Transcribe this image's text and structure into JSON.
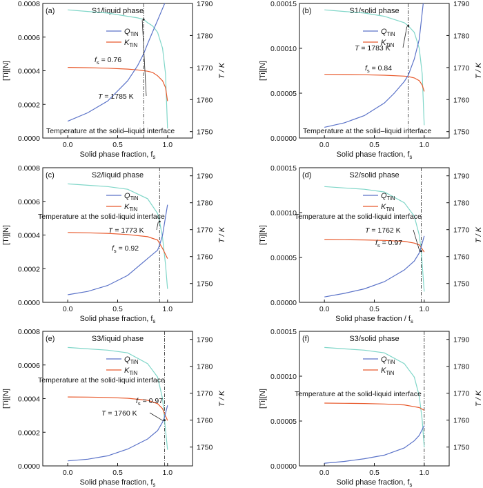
{
  "figure_colors": {
    "Q": "#5a72c8",
    "K": "#e8582a",
    "T": "#7fd6c8",
    "axis": "#111111",
    "marker": "#222222"
  },
  "chart_data": [
    {
      "type": "line",
      "panel_label": "(a)",
      "title": "S1/liquid phase",
      "xlabel": "Solid phase fraction, f",
      "xlabel_sub": "s",
      "ylabel": "[Ti][N]",
      "y2label": "T / K",
      "xlim": [
        -0.25,
        1.25
      ],
      "xticks": [
        0.0,
        0.5,
        1.0
      ],
      "xtick_labels": [
        "0.0",
        "0.5",
        "1.0"
      ],
      "ylim": [
        0,
        0.0008
      ],
      "yticks": [
        0,
        0.0002,
        0.0004,
        0.0006,
        0.0008
      ],
      "ytick_labels": [
        "0.0000",
        "0.0002",
        "0.0004",
        "0.0006",
        "0.0008"
      ],
      "y2lim": [
        1748,
        1790
      ],
      "y2ticks": [
        1750,
        1760,
        1770,
        1780,
        1790
      ],
      "y2tick_labels": [
        "1750",
        "1760",
        "1770",
        "1780",
        "1790"
      ],
      "legend": [
        {
          "main": "Q",
          "sub": "TiN"
        },
        {
          "main": "K",
          "sub": "TiN"
        }
      ],
      "annotations": [
        {
          "main": "T",
          "rest": " = 1785 K"
        },
        {
          "main": "f",
          "sub": "s",
          "rest": " = 0.76"
        },
        {
          "text": "Temperature at the solid–liquid interface"
        }
      ],
      "vline_x": 0.76,
      "series": [
        {
          "name": "Q",
          "axis": "left",
          "x": [
            0,
            0.2,
            0.4,
            0.6,
            0.7,
            0.76,
            0.8,
            0.85,
            0.9,
            0.95,
            1.0
          ],
          "y": [
            0.0001,
            0.00015,
            0.00022,
            0.00034,
            0.00043,
            0.0005,
            0.00056,
            0.00063,
            0.0007,
            0.00077,
            0.00084
          ]
        },
        {
          "name": "K",
          "axis": "left",
          "x": [
            0,
            0.2,
            0.4,
            0.6,
            0.7,
            0.8,
            0.85,
            0.9,
            0.95,
            0.98,
            1.0
          ],
          "y": [
            0.00042,
            0.000418,
            0.000415,
            0.00041,
            0.000405,
            0.000397,
            0.00039,
            0.00037,
            0.00034,
            0.0003,
            0.00022
          ]
        },
        {
          "name": "T",
          "axis": "right",
          "x": [
            0,
            0.2,
            0.4,
            0.6,
            0.7,
            0.76,
            0.8,
            0.85,
            0.9,
            0.95,
            0.98,
            1.0
          ],
          "y": [
            1788,
            1787.5,
            1787,
            1786,
            1785.5,
            1785,
            1784,
            1783,
            1781,
            1776,
            1768,
            1751
          ]
        }
      ]
    },
    {
      "type": "line",
      "panel_label": "(b)",
      "title": "S1/solid phase",
      "xlabel": "Solid phase fraction, f",
      "xlabel_sub": "s",
      "ylabel": "[Ti][N]",
      "y2label": "T / K",
      "xlim": [
        -0.25,
        1.25
      ],
      "xticks": [
        0.0,
        0.5,
        1.0
      ],
      "xtick_labels": [
        "0.0",
        "0.5",
        "1.0"
      ],
      "ylim": [
        0,
        0.00015
      ],
      "yticks": [
        0,
        5e-05,
        0.0001,
        0.00015
      ],
      "ytick_labels": [
        "0.00000",
        "0.00005",
        "0.00010",
        "0.00015"
      ],
      "y2lim": [
        1748,
        1790
      ],
      "y2ticks": [
        1750,
        1760,
        1770,
        1780,
        1790
      ],
      "y2tick_labels": [
        "1750",
        "1760",
        "1770",
        "1780",
        "1790"
      ],
      "legend": [
        {
          "main": "Q",
          "sub": "TiN"
        },
        {
          "main": "K",
          "sub": "TiN"
        }
      ],
      "annotations": [
        {
          "main": "T",
          "rest": " = 1783 K"
        },
        {
          "main": "f",
          "sub": "s",
          "rest": " = 0.84"
        },
        {
          "text": "Temperature at the solid–liquid interface"
        }
      ],
      "vline_x": 0.84,
      "series": [
        {
          "name": "Q",
          "axis": "left",
          "x": [
            0,
            0.2,
            0.4,
            0.6,
            0.7,
            0.8,
            0.84,
            0.9,
            0.95,
            1.0
          ],
          "y": [
            1.2e-05,
            1.7e-05,
            2.5e-05,
            3.9e-05,
            5e-05,
            6.3e-05,
            7e-05,
            8.8e-05,
            0.00011,
            0.00016
          ]
        },
        {
          "name": "K",
          "axis": "left",
          "x": [
            0,
            0.2,
            0.4,
            0.6,
            0.8,
            0.84,
            0.9,
            0.95,
            0.98,
            1.0
          ],
          "y": [
            7.1e-05,
            7.08e-05,
            7.05e-05,
            7e-05,
            6.9e-05,
            6.85e-05,
            6.7e-05,
            6.4e-05,
            5.9e-05,
            5.2e-05
          ]
        },
        {
          "name": "T",
          "axis": "right",
          "x": [
            0,
            0.2,
            0.4,
            0.6,
            0.8,
            0.84,
            0.9,
            0.95,
            0.98,
            1.0
          ],
          "y": [
            1788,
            1787.5,
            1787,
            1786,
            1784,
            1783,
            1781,
            1776,
            1768,
            1752
          ]
        }
      ]
    },
    {
      "type": "line",
      "panel_label": "(c)",
      "title": "S2/liquid phase",
      "xlabel": "Solid phase fraction, f",
      "xlabel_sub": "s",
      "ylabel": "[Ti][N]",
      "y2label": "T / K",
      "xlim": [
        -0.25,
        1.25
      ],
      "xticks": [
        0.0,
        0.5,
        1.0
      ],
      "xtick_labels": [
        "0.0",
        "0.5",
        "1.0"
      ],
      "ylim": [
        0,
        0.0008
      ],
      "yticks": [
        0,
        0.0002,
        0.0004,
        0.0006,
        0.0008
      ],
      "ytick_labels": [
        "0.0000",
        "0.0002",
        "0.0004",
        "0.0006",
        "0.0008"
      ],
      "y2lim": [
        1743,
        1793
      ],
      "y2ticks": [
        1750,
        1760,
        1770,
        1780,
        1790
      ],
      "y2tick_labels": [
        "1750",
        "1760",
        "1770",
        "1780",
        "1790"
      ],
      "legend": [
        {
          "main": "Q",
          "sub": "TiN"
        },
        {
          "main": "K",
          "sub": "TiN"
        }
      ],
      "annotations": [
        {
          "text": "Temperature at the solid-liquid interface"
        },
        {
          "main": "T",
          "rest": " = 1773 K"
        },
        {
          "main": "f",
          "sub": "s",
          "rest": " = 0.92"
        }
      ],
      "vline_x": 0.92,
      "series": [
        {
          "name": "Q",
          "axis": "left",
          "x": [
            0,
            0.2,
            0.4,
            0.6,
            0.8,
            0.9,
            0.92,
            0.95,
            1.0
          ],
          "y": [
            4.5e-05,
            6.5e-05,
            0.0001,
            0.00016,
            0.00026,
            0.00031,
            0.00034,
            0.0004,
            0.00058
          ]
        },
        {
          "name": "K",
          "axis": "left",
          "x": [
            0,
            0.2,
            0.4,
            0.6,
            0.8,
            0.9,
            0.92,
            0.95,
            1.0
          ],
          "y": [
            0.000415,
            0.000413,
            0.00041,
            0.000403,
            0.00039,
            0.00037,
            0.00035,
            0.00032,
            0.00026
          ]
        },
        {
          "name": "T",
          "axis": "right",
          "x": [
            0,
            0.2,
            0.4,
            0.6,
            0.8,
            0.9,
            0.92,
            0.95,
            0.98,
            1.0
          ],
          "y": [
            1787,
            1786.5,
            1786,
            1785,
            1781.5,
            1776,
            1773,
            1767,
            1757,
            1748
          ]
        }
      ]
    },
    {
      "type": "line",
      "panel_label": "(d)",
      "title": "S2/solid phase",
      "xlabel": "Solid phase fraction / f",
      "xlabel_sub": "s",
      "ylabel": "[Ti][N]",
      "y2label": "T / K",
      "xlim": [
        -0.25,
        1.25
      ],
      "xticks": [
        0.0,
        0.5,
        1.0
      ],
      "xtick_labels": [
        "0.0",
        "0.5",
        "1.0"
      ],
      "ylim": [
        0,
        0.00015
      ],
      "yticks": [
        0,
        5e-05,
        0.0001,
        0.00015
      ],
      "ytick_labels": [
        "0.00000",
        "0.00005",
        "0.00010",
        "0.00015"
      ],
      "y2lim": [
        1743,
        1793
      ],
      "y2ticks": [
        1750,
        1760,
        1770,
        1780,
        1790
      ],
      "y2tick_labels": [
        "1750",
        "1760",
        "1770",
        "1780",
        "1790"
      ],
      "legend": [
        {
          "main": "Q",
          "sub": "TiN"
        },
        {
          "main": "K",
          "sub": "TiN"
        }
      ],
      "annotations": [
        {
          "text": "Temperature at the solid-liquid interface"
        },
        {
          "main": "T",
          "rest": " = 1762 K"
        },
        {
          "main": "f",
          "sub": "s",
          "rest": " = 0.97"
        }
      ],
      "vline_x": 0.97,
      "series": [
        {
          "name": "Q",
          "axis": "left",
          "x": [
            0,
            0.2,
            0.4,
            0.6,
            0.8,
            0.9,
            0.95,
            0.97,
            1.0
          ],
          "y": [
            6e-06,
            1e-05,
            1.5e-05,
            2.3e-05,
            3.6e-05,
            4.6e-05,
            5.5e-05,
            6.2e-05,
            7.4e-05
          ]
        },
        {
          "name": "K",
          "axis": "left",
          "x": [
            0,
            0.2,
            0.4,
            0.6,
            0.8,
            0.9,
            0.95,
            0.97,
            1.0
          ],
          "y": [
            7e-05,
            6.98e-05,
            6.95e-05,
            6.9e-05,
            6.8e-05,
            6.6e-05,
            6.4e-05,
            6.1e-05,
            5.6e-05
          ]
        },
        {
          "name": "T",
          "axis": "right",
          "x": [
            0,
            0.2,
            0.4,
            0.6,
            0.8,
            0.9,
            0.95,
            0.97,
            1.0
          ],
          "y": [
            1786,
            1785.5,
            1785,
            1784,
            1780,
            1775,
            1768,
            1762,
            1747
          ]
        }
      ]
    },
    {
      "type": "line",
      "panel_label": "(e)",
      "title": "S3/liquid phase",
      "xlabel": "Solid phase fraction, f",
      "xlabel_sub": "s",
      "ylabel": "[Ti][N]",
      "y2label": "T / K",
      "xlim": [
        -0.25,
        1.25
      ],
      "xticks": [
        0.0,
        0.5,
        1.0
      ],
      "xtick_labels": [
        "0.0",
        "0.5",
        "1.0"
      ],
      "ylim": [
        0,
        0.0008
      ],
      "yticks": [
        0,
        0.0002,
        0.0004,
        0.0006,
        0.0008
      ],
      "ytick_labels": [
        "0.0000",
        "0.0002",
        "0.0004",
        "0.0006",
        "0.0008"
      ],
      "y2lim": [
        1743,
        1793
      ],
      "y2ticks": [
        1750,
        1760,
        1770,
        1780,
        1790
      ],
      "y2tick_labels": [
        "1750",
        "1760",
        "1770",
        "1780",
        "1790"
      ],
      "legend": [
        {
          "main": "Q",
          "sub": "TiN"
        },
        {
          "main": "K",
          "sub": "TiN"
        }
      ],
      "annotations": [
        {
          "text": "Temperature at the solid-liquid interface"
        },
        {
          "main": "f",
          "sub": "s",
          "rest": " = 0.97"
        },
        {
          "main": "T",
          "rest": " = 1760 K"
        }
      ],
      "vline_x": 0.97,
      "series": [
        {
          "name": "Q",
          "axis": "left",
          "x": [
            0,
            0.2,
            0.4,
            0.6,
            0.8,
            0.9,
            0.95,
            0.97,
            1.0
          ],
          "y": [
            3e-05,
            4e-05,
            6e-05,
            0.0001,
            0.00016,
            0.00021,
            0.00026,
            0.00029,
            0.00036
          ]
        },
        {
          "name": "K",
          "axis": "left",
          "x": [
            0,
            0.2,
            0.4,
            0.6,
            0.8,
            0.9,
            0.95,
            0.97,
            1.0
          ],
          "y": [
            0.00041,
            0.000409,
            0.000407,
            0.000402,
            0.00039,
            0.00037,
            0.00034,
            0.00031,
            0.00027
          ]
        },
        {
          "name": "T",
          "axis": "right",
          "x": [
            0,
            0.2,
            0.4,
            0.6,
            0.8,
            0.9,
            0.95,
            0.97,
            1.0
          ],
          "y": [
            1787,
            1786.5,
            1786,
            1785,
            1781,
            1776,
            1768,
            1760,
            1749
          ]
        }
      ]
    },
    {
      "type": "line",
      "panel_label": "(f)",
      "title": "S3/solid phase",
      "xlabel": "Solid phase fraction, f",
      "xlabel_sub": "s",
      "ylabel": "[Ti][N]",
      "y2label": "T / K",
      "xlim": [
        -0.25,
        1.25
      ],
      "xticks": [
        0.0,
        0.5,
        1.0
      ],
      "xtick_labels": [
        "0.0",
        "0.5",
        "1.0"
      ],
      "ylim": [
        0,
        0.00015
      ],
      "yticks": [
        0,
        5e-05,
        0.0001,
        0.00015
      ],
      "ytick_labels": [
        "0.00000",
        "0.00005",
        "0.00010",
        "0.00015"
      ],
      "y2lim": [
        1743,
        1793
      ],
      "y2ticks": [
        1750,
        1760,
        1770,
        1780,
        1790
      ],
      "y2tick_labels": [
        "1750",
        "1760",
        "1770",
        "1780",
        "1790"
      ],
      "legend": [
        {
          "main": "Q",
          "sub": "TiN"
        },
        {
          "main": "K",
          "sub": "TiN"
        }
      ],
      "annotations": [
        {
          "text": "Temperature at the solid-liquid interface"
        }
      ],
      "vline_x": 1.0,
      "series": [
        {
          "name": "Q",
          "axis": "left",
          "x": [
            0,
            0.2,
            0.4,
            0.6,
            0.8,
            0.9,
            0.95,
            1.0
          ],
          "y": [
            3e-06,
            5e-06,
            8e-06,
            1.2e-05,
            2e-05,
            2.8e-05,
            3.4e-05,
            4.5e-05
          ]
        },
        {
          "name": "K",
          "axis": "left",
          "x": [
            0,
            0.2,
            0.4,
            0.6,
            0.8,
            0.9,
            0.95,
            1.0
          ],
          "y": [
            7e-05,
            6.98e-05,
            6.95e-05,
            6.9e-05,
            6.8e-05,
            6.6e-05,
            6.5e-05,
            6.2e-05
          ]
        },
        {
          "name": "T",
          "axis": "right",
          "x": [
            0,
            0.2,
            0.4,
            0.6,
            0.8,
            0.9,
            0.95,
            0.98,
            1.0
          ],
          "y": [
            1787,
            1786.5,
            1786,
            1785,
            1781,
            1776,
            1769,
            1760,
            1750
          ]
        }
      ]
    }
  ]
}
